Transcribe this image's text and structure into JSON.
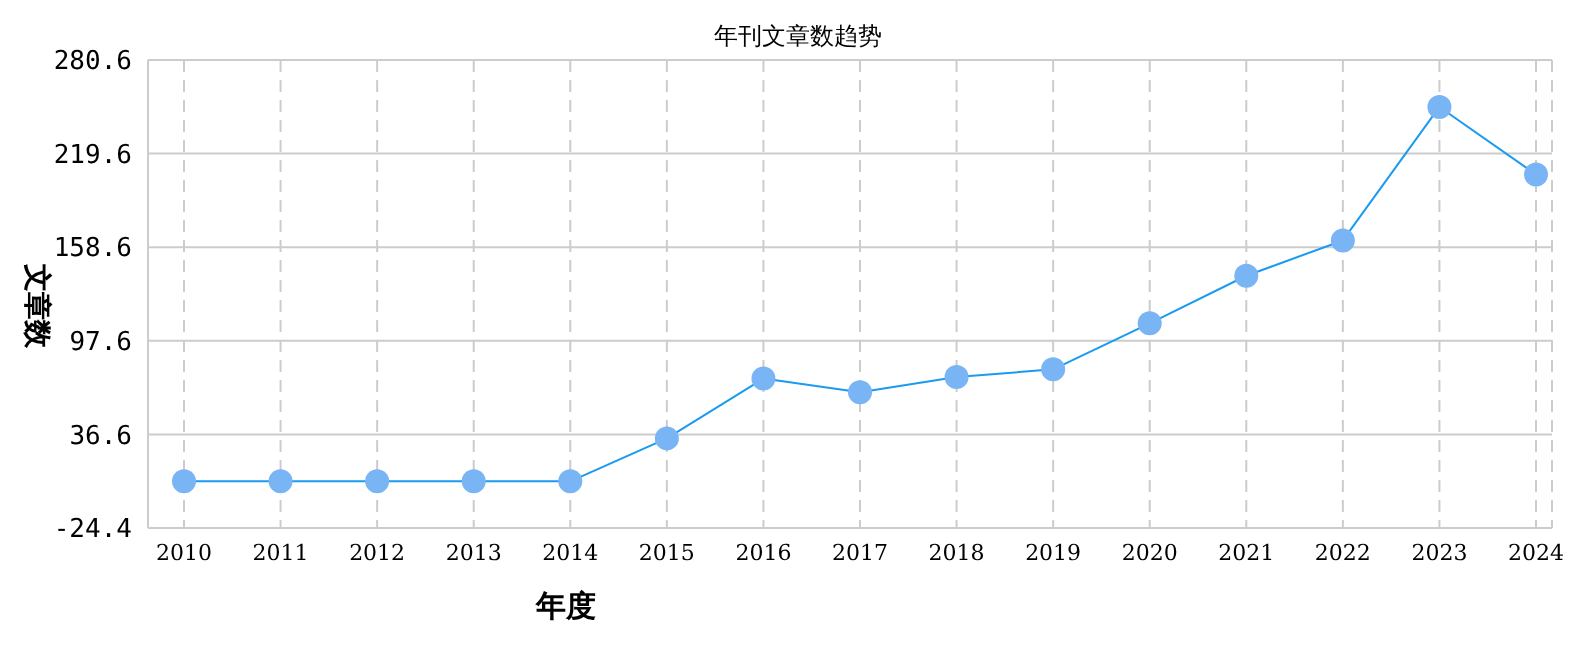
{
  "chart_data": {
    "type": "line",
    "title": "年刊文章数趋势",
    "xlabel": "年度",
    "ylabel": "文章数",
    "categories": [
      "2010",
      "2011",
      "2012",
      "2013",
      "2014",
      "2015",
      "2016",
      "2017",
      "2018",
      "2019",
      "2020",
      "2021",
      "2022",
      "2023",
      "2024"
    ],
    "series": [
      {
        "color": "#1a9af0",
        "values": [
          6,
          6,
          6,
          6,
          6,
          34,
          73,
          64,
          74,
          79,
          109,
          140,
          163,
          250,
          206
        ]
      }
    ],
    "ylim": [
      -24.4,
      280.6
    ],
    "yticks": [
      -24.4,
      36.6,
      97.6,
      158.6,
      219.6,
      280.6
    ],
    "grid": true,
    "marker": "circle",
    "line_style": "solid",
    "legend": false
  }
}
